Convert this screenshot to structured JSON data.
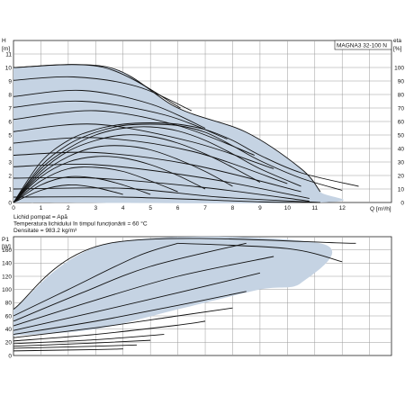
{
  "chart_data": [
    {
      "type": "line",
      "model_label": "MAGNA3 32-100 N",
      "ylabel": "H",
      "yunit": "[m]",
      "y2label": "eta",
      "y2unit": "[%]",
      "xlabel": "Q",
      "xunit": "[m³/h]",
      "xlim": [
        0,
        13.8
      ],
      "ylim": [
        0,
        12
      ],
      "y2lim": [
        0,
        120
      ],
      "x_ticks": [
        "0",
        "1",
        "2",
        "3",
        "4",
        "5",
        "6",
        "7",
        "8",
        "9",
        "10",
        "11",
        "12"
      ],
      "y_ticks": [
        "0",
        "1",
        "2",
        "3",
        "4",
        "5",
        "6",
        "7",
        "8",
        "9",
        "10",
        "11"
      ],
      "y2_ticks": [
        "0",
        "10",
        "20",
        "30",
        "40",
        "50",
        "60",
        "70",
        "80",
        "90",
        "100"
      ],
      "grid": true,
      "operating_area": [
        [
          0,
          10
        ],
        [
          3.5,
          10
        ],
        [
          6,
          7
        ],
        [
          8.5,
          5.2
        ],
        [
          10.5,
          2.5
        ],
        [
          11.2,
          0.8
        ],
        [
          11.2,
          0
        ],
        [
          0,
          0
        ]
      ],
      "series": [
        {
          "values": [
            [
              0,
              10
            ],
            [
              3.3,
              10
            ],
            [
              6.1,
              7
            ]
          ]
        },
        {
          "values": [
            [
              0,
              9.05
            ],
            [
              2.2,
              9.3
            ],
            [
              4.5,
              8.6
            ],
            [
              6.5,
              6.8
            ]
          ]
        },
        {
          "values": [
            [
              0,
              7.85
            ],
            [
              2.5,
              8.3
            ],
            [
              5,
              7.3
            ],
            [
              7,
              5.5
            ]
          ]
        },
        {
          "values": [
            [
              0,
              7.05
            ],
            [
              2.5,
              7.5
            ],
            [
              5.5,
              6.5
            ],
            [
              7.8,
              4.7
            ]
          ]
        },
        {
          "values": [
            [
              0,
              6.15
            ],
            [
              3,
              6.8
            ],
            [
              6,
              5.7
            ],
            [
              8.8,
              3.5
            ]
          ]
        },
        {
          "values": [
            [
              0,
              5.25
            ],
            [
              3,
              5.8
            ],
            [
              6.5,
              4.5
            ],
            [
              9.5,
              2.5
            ]
          ]
        },
        {
          "values": [
            [
              0,
              4.4
            ],
            [
              3,
              4.8
            ],
            [
              6.5,
              3.8
            ],
            [
              10,
              1.4
            ]
          ]
        },
        {
          "values": [
            [
              0,
              3.5
            ],
            [
              3,
              3.7
            ],
            [
              6.5,
              2.8
            ],
            [
              10.5,
              0.8
            ]
          ]
        },
        {
          "values": [
            [
              0,
              2.65
            ],
            [
              3,
              2.8
            ],
            [
              7,
              1.8
            ],
            [
              10.8,
              0.3
            ]
          ]
        },
        {
          "values": [
            [
              0,
              1.8
            ],
            [
              3,
              1.8
            ],
            [
              7,
              1.1
            ],
            [
              10.8,
              0.1
            ]
          ]
        },
        {
          "values": [
            [
              0,
              1.0
            ],
            [
              4,
              1.05
            ],
            [
              7.5,
              0.4
            ],
            [
              11.2,
              0
            ]
          ]
        },
        {
          "values": [
            [
              0,
              0.4
            ],
            [
              4,
              0.4
            ],
            [
              9,
              0.05
            ],
            [
              11.2,
              0
            ]
          ]
        },
        {
          "values": [
            [
              0,
              10
            ],
            [
              3.5,
              10
            ],
            [
              6,
              7
            ],
            [
              8.5,
              5.2
            ],
            [
              10.5,
              2.5
            ],
            [
              11.2,
              0.8
            ]
          ]
        },
        {
          "values": [
            [
              0,
              0
            ],
            [
              1,
              3
            ],
            [
              2,
              4.6
            ],
            [
              3,
              5.4
            ],
            [
              4,
              5.8
            ],
            [
              5,
              5.9
            ],
            [
              6,
              5.8
            ],
            [
              7,
              5.4
            ],
            [
              8,
              4.6
            ],
            [
              9,
              3.5
            ],
            [
              10.5,
              2.2
            ],
            [
              12.6,
              1.2
            ]
          ]
        },
        {
          "values": [
            [
              0,
              0
            ],
            [
              1,
              2.7
            ],
            [
              2,
              4.3
            ],
            [
              3,
              5.2
            ],
            [
              4,
              5.7
            ],
            [
              5,
              5.8
            ],
            [
              6,
              5.7
            ],
            [
              7,
              5.2
            ],
            [
              8,
              4.2
            ],
            [
              9,
              3.1
            ],
            [
              10.5,
              1.8
            ],
            [
              12,
              0.9
            ]
          ]
        },
        {
          "values": [
            [
              0,
              0
            ],
            [
              1,
              2.5
            ],
            [
              2,
              4.0
            ],
            [
              3,
              5.0
            ],
            [
              4,
              5.5
            ],
            [
              5,
              5.6
            ],
            [
              6,
              5.3
            ],
            [
              7,
              4.6
            ],
            [
              8,
              3.6
            ],
            [
              9,
              2.5
            ],
            [
              10.5,
              1.2
            ]
          ]
        },
        {
          "values": [
            [
              0,
              0
            ],
            [
              1,
              2.3
            ],
            [
              2,
              3.8
            ],
            [
              3,
              4.6
            ],
            [
              4,
              5.0
            ],
            [
              5,
              4.9
            ],
            [
              6,
              4.4
            ],
            [
              7,
              3.6
            ],
            [
              8,
              2.6
            ],
            [
              9,
              1.5
            ]
          ]
        },
        {
          "values": [
            [
              0,
              0
            ],
            [
              1,
              2.1
            ],
            [
              2,
              3.4
            ],
            [
              3,
              4.1
            ],
            [
              4,
              4.2
            ],
            [
              5,
              3.9
            ],
            [
              6,
              3.2
            ],
            [
              7,
              2.3
            ],
            [
              8,
              1.2
            ]
          ]
        },
        {
          "values": [
            [
              0,
              0
            ],
            [
              1,
              1.9
            ],
            [
              2,
              3.0
            ],
            [
              3,
              3.4
            ],
            [
              4,
              3.3
            ],
            [
              5,
              2.8
            ],
            [
              6,
              2.0
            ],
            [
              7,
              1.0
            ]
          ]
        },
        {
          "values": [
            [
              0,
              0
            ],
            [
              1,
              1.6
            ],
            [
              2,
              2.5
            ],
            [
              3,
              2.6
            ],
            [
              4,
              2.3
            ],
            [
              5,
              1.6
            ],
            [
              6,
              0.8
            ]
          ]
        },
        {
          "values": [
            [
              0,
              0
            ],
            [
              1,
              1.3
            ],
            [
              2,
              1.9
            ],
            [
              3,
              1.8
            ],
            [
              4,
              1.3
            ],
            [
              5,
              0.6
            ]
          ]
        },
        {
          "values": [
            [
              0,
              0
            ],
            [
              1,
              0.9
            ],
            [
              2,
              1.3
            ],
            [
              3,
              1.1
            ],
            [
              4,
              0.6
            ]
          ]
        }
      ]
    },
    {
      "type": "line",
      "ylabel": "P1",
      "yunit": "[W]",
      "xlim": [
        0,
        13.8
      ],
      "ylim": [
        0,
        180
      ],
      "y_ticks": [
        "0",
        "20",
        "40",
        "60",
        "80",
        "100",
        "120",
        "140",
        "160"
      ],
      "grid": true,
      "operating_area": [
        [
          0,
          70
        ],
        [
          3.5,
          170
        ],
        [
          11.2,
          170
        ],
        [
          10.5,
          110
        ],
        [
          9,
          100
        ],
        [
          6,
          70
        ],
        [
          3,
          40
        ],
        [
          0,
          30
        ]
      ],
      "series": [
        {
          "values": [
            [
              0,
              70
            ],
            [
              3.5,
              170
            ],
            [
              12.5,
              170
            ]
          ]
        },
        {
          "values": [
            [
              0,
              60
            ],
            [
              2,
              100
            ],
            [
              4.5,
              150
            ],
            [
              6,
              170
            ]
          ]
        },
        {
          "values": [
            [
              0,
              52
            ],
            [
              2.5,
              95
            ],
            [
              5,
              135
            ],
            [
              8.5,
              170
            ]
          ]
        },
        {
          "values": [
            [
              0,
              45
            ],
            [
              3,
              84
            ],
            [
              6,
              120
            ],
            [
              9.5,
              150
            ]
          ]
        },
        {
          "values": [
            [
              0,
              38
            ],
            [
              3,
              66
            ],
            [
              6,
              95
            ],
            [
              9,
              125
            ]
          ]
        },
        {
          "values": [
            [
              0,
              32
            ],
            [
              3,
              52
            ],
            [
              6,
              76
            ],
            [
              8.5,
              97
            ]
          ]
        },
        {
          "values": [
            [
              0,
              27
            ],
            [
              3,
              42
            ],
            [
              6,
              60
            ],
            [
              8,
              72
            ]
          ]
        },
        {
          "values": [
            [
              0,
              22
            ],
            [
              3,
              32
            ],
            [
              6,
              46
            ],
            [
              7,
              52
            ]
          ]
        },
        {
          "values": [
            [
              0,
              18
            ],
            [
              3,
              24
            ],
            [
              5.5,
              32
            ]
          ]
        },
        {
          "values": [
            [
              0,
              14
            ],
            [
              3,
              19
            ],
            [
              5,
              23
            ]
          ]
        },
        {
          "values": [
            [
              0,
              11
            ],
            [
              3,
              14
            ],
            [
              4.5,
              16
            ]
          ]
        },
        {
          "values": [
            [
              0,
              7
            ],
            [
              3,
              9
            ],
            [
              4,
              10
            ]
          ]
        },
        {
          "values": [
            [
              6,
              170
            ],
            [
              10,
              162
            ],
            [
              12,
              142
            ]
          ]
        }
      ]
    }
  ],
  "notes": {
    "line1": "Lichid pompat = Apă",
    "line2": "Temperatura lichidului în timpul funcționării = 60 °C",
    "line3": "Densitate = 983.2 kg/m³"
  },
  "colors": {
    "area": "#c5d3e3",
    "grid": "#999999",
    "curve": "#111111"
  }
}
